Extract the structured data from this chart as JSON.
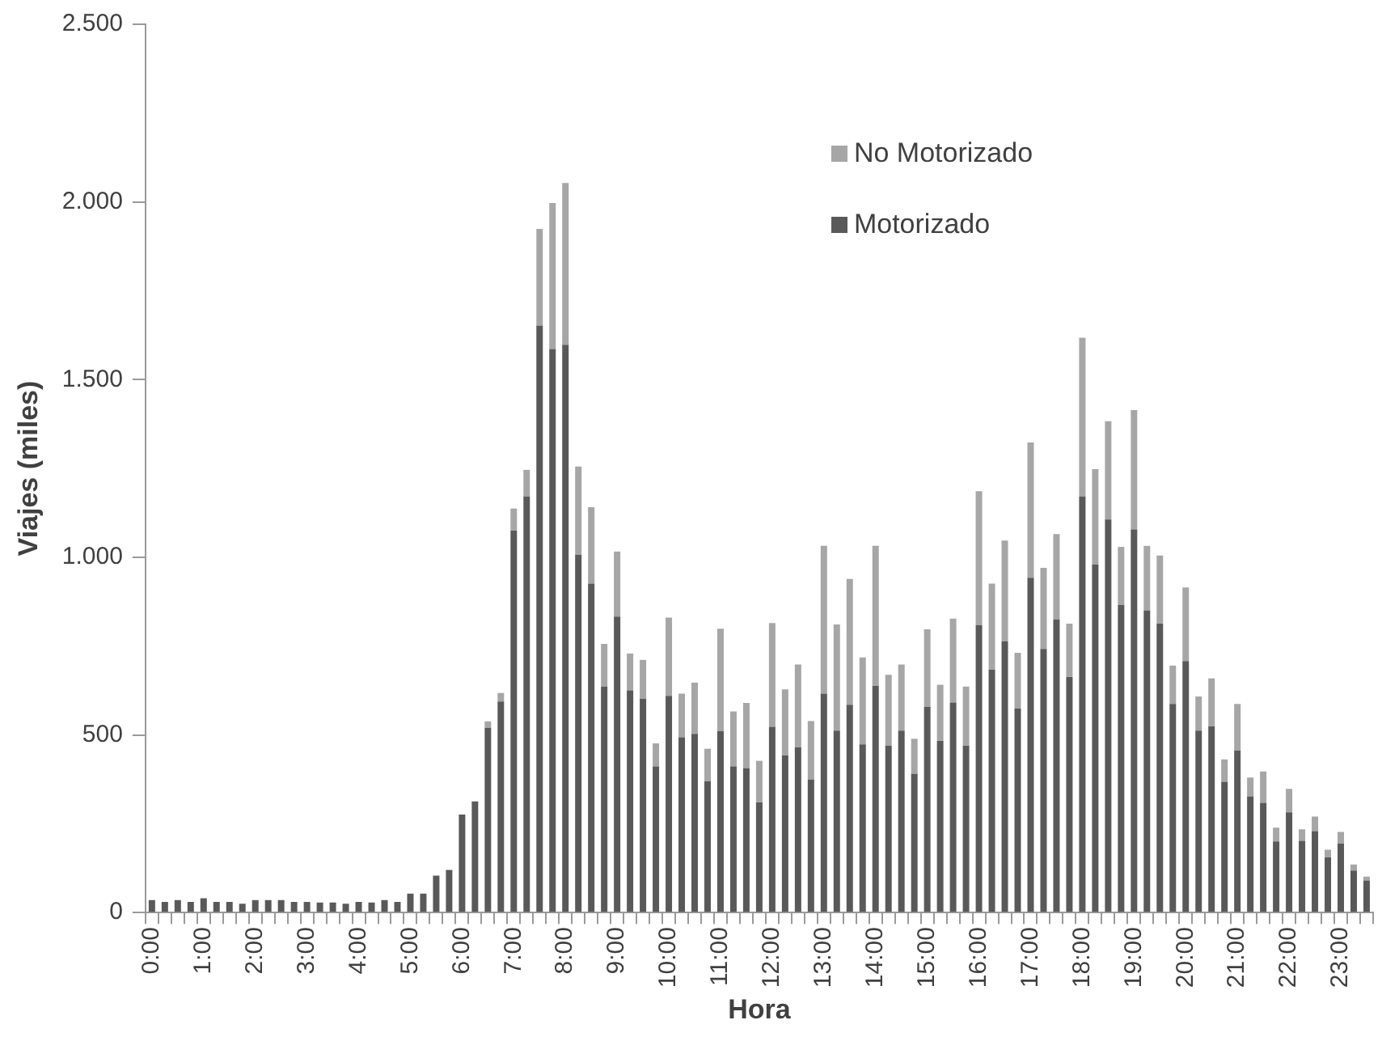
{
  "chart_data": {
    "type": "bar",
    "stacked": true,
    "xlabel": "Hora",
    "ylabel": "Viajes (miles)",
    "categories": [
      "0:00",
      null,
      null,
      null,
      "1:00",
      null,
      null,
      null,
      "2:00",
      null,
      null,
      null,
      "3:00",
      null,
      null,
      null,
      "4:00",
      null,
      null,
      null,
      "5:00",
      null,
      null,
      null,
      "6:00",
      null,
      null,
      null,
      "7:00",
      null,
      null,
      null,
      "8:00",
      null,
      null,
      null,
      "9:00",
      null,
      null,
      null,
      "10:00",
      null,
      null,
      null,
      "11:00",
      null,
      null,
      null,
      "12:00",
      null,
      null,
      null,
      "13:00",
      null,
      null,
      null,
      "14:00",
      null,
      null,
      null,
      "15:00",
      null,
      null,
      null,
      "16:00",
      null,
      null,
      null,
      "17:00",
      null,
      null,
      null,
      "18:00",
      null,
      null,
      null,
      "19:00",
      null,
      null,
      null,
      "20:00",
      null,
      null,
      null,
      "21:00",
      null,
      null,
      null,
      "22:00",
      null,
      null,
      null,
      "23:00",
      null,
      null
    ],
    "series": [
      {
        "name": "Motorizado",
        "color": "#595959",
        "values": [
          35,
          30,
          35,
          30,
          40,
          30,
          30,
          25,
          35,
          35,
          35,
          30,
          30,
          28,
          28,
          25,
          30,
          28,
          35,
          30,
          53,
          53,
          104,
          120,
          276,
          313,
          520,
          594,
          1075,
          1171,
          1652,
          1586,
          1598,
          1007,
          926,
          636,
          833,
          625,
          602,
          411,
          610,
          493,
          503,
          369,
          511,
          411,
          406,
          310,
          523,
          442,
          465,
          374,
          616,
          512,
          585,
          473,
          638,
          470,
          512,
          391,
          579,
          483,
          591,
          470,
          809,
          683,
          763,
          574,
          942,
          742,
          825,
          663,
          1171,
          979,
          1106,
          866,
          1078,
          850,
          813,
          587,
          708,
          512,
          524,
          368,
          456,
          327,
          309,
          200,
          282,
          202,
          229,
          155,
          194,
          118,
          90
        ]
      },
      {
        "name": "No Motorizado",
        "color": "#a6a6a6",
        "values": [
          0,
          0,
          0,
          0,
          0,
          0,
          0,
          0,
          0,
          0,
          0,
          0,
          0,
          0,
          0,
          0,
          0,
          0,
          0,
          0,
          0,
          0,
          null,
          null,
          null,
          null,
          18,
          24,
          62,
          75,
          272,
          411,
          455,
          248,
          215,
          120,
          183,
          104,
          109,
          65,
          220,
          123,
          144,
          92,
          288,
          155,
          184,
          117,
          292,
          186,
          233,
          165,
          416,
          299,
          354,
          245,
          394,
          199,
          186,
          98,
          218,
          158,
          236,
          166,
          377,
          243,
          284,
          157,
          381,
          228,
          240,
          150,
          447,
          269,
          277,
          163,
          336,
          182,
          192,
          108,
          207,
          96,
          135,
          63,
          131,
          53,
          88,
          39,
          66,
          32,
          41,
          22,
          33,
          17,
          11
        ]
      }
    ],
    "ylim": [
      0,
      2500
    ],
    "yticks": [
      0,
      500,
      {
        "value": 1000,
        "label": "1.000"
      },
      {
        "value": 1500,
        "label": "1.500"
      },
      {
        "value": 2000,
        "label": "2.000"
      },
      {
        "value": 2500,
        "label": "2.500"
      }
    ],
    "grid": false,
    "legend": "top right"
  }
}
